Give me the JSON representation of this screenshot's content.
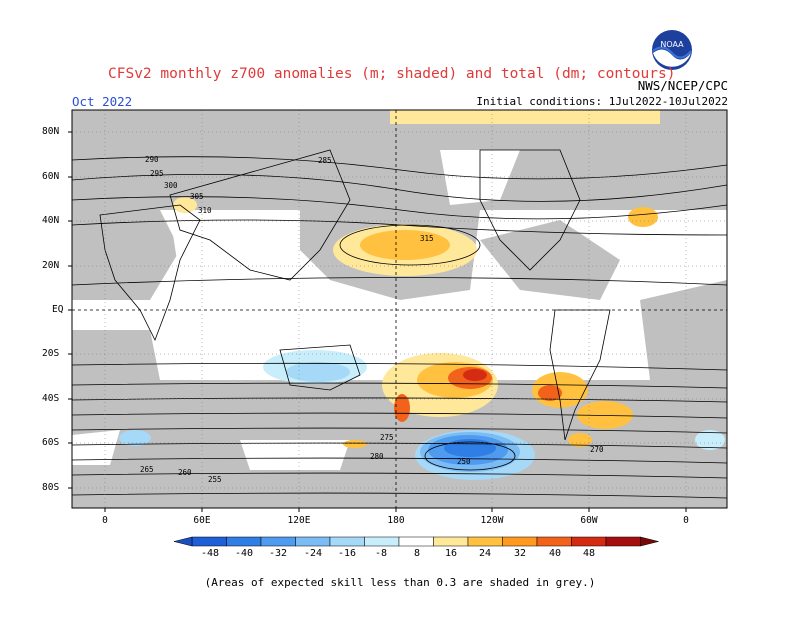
{
  "header": {
    "title": "CFSv2 monthly z700 anomalies (m; shaded) and total (dm; contours)",
    "organization": "NWS/NCEP/CPC",
    "month": "Oct 2022",
    "initial_conditions": "Initial conditions: 1Jul2022-10Jul2022",
    "logo_text": "NOAA"
  },
  "map": {
    "lat_labels": [
      "80N",
      "60N",
      "40N",
      "20N",
      "EQ",
      "20S",
      "40S",
      "60S",
      "80S"
    ],
    "lon_labels": [
      "0",
      "60E",
      "120E",
      "180",
      "120W",
      "60W",
      "0"
    ],
    "contour_labels": [
      "285",
      "290",
      "295",
      "300",
      "305",
      "310",
      "315",
      "280",
      "275",
      "270",
      "265",
      "260",
      "255",
      "250"
    ],
    "skill_mask_color": "#c0c0c0"
  },
  "colorbar": {
    "labels": [
      "-48",
      "-40",
      "-32",
      "-24",
      "-16",
      "-8",
      "8",
      "16",
      "24",
      "32",
      "40",
      "48"
    ],
    "colors": [
      "#1e5fd8",
      "#2f7ee6",
      "#4f9bf0",
      "#7bbcf5",
      "#a6d8f8",
      "#c8eefb",
      "#ffffff",
      "#ffe89a",
      "#ffc13f",
      "#ff9a1f",
      "#f2621a",
      "#d42b13",
      "#a50f0f"
    ]
  },
  "footer": {
    "note": "(Areas of expected skill less than 0.3 are shaded in grey.)"
  }
}
